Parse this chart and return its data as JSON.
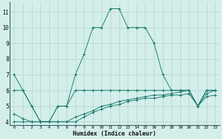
{
  "xlabel": "Humidex (Indice chaleur)",
  "bg_color": "#d4eeea",
  "line_color": "#1a7a6e",
  "grid_color": "#aed4ce",
  "xlim": [
    -0.5,
    23.5
  ],
  "ylim": [
    3.8,
    11.6
  ],
  "xticks": [
    0,
    1,
    2,
    3,
    4,
    5,
    6,
    7,
    8,
    9,
    10,
    11,
    12,
    13,
    14,
    15,
    16,
    17,
    18,
    19,
    20,
    21,
    22,
    23
  ],
  "yticks": [
    4,
    5,
    6,
    7,
    8,
    9,
    10,
    11
  ],
  "series": [
    {
      "x": [
        0,
        1,
        2,
        3,
        4,
        5,
        6,
        7,
        8,
        9,
        10,
        11,
        12,
        13,
        14,
        15,
        16,
        17,
        18,
        19,
        20,
        21,
        22,
        23
      ],
      "y": [
        7,
        6,
        5,
        4,
        4,
        5,
        5,
        7,
        8.3,
        10,
        10,
        11.2,
        11.2,
        10,
        10,
        10,
        9,
        7,
        6,
        6,
        6,
        5,
        6,
        6
      ]
    },
    {
      "x": [
        0,
        1,
        2,
        3,
        4,
        5,
        6,
        7,
        8,
        9,
        10,
        11,
        12,
        13,
        14,
        15,
        16,
        17,
        18,
        19,
        20,
        21,
        22,
        23
      ],
      "y": [
        6,
        6,
        5,
        4,
        4,
        5,
        5,
        6,
        6,
        6,
        6,
        6,
        6,
        6,
        6,
        6,
        6,
        6,
        6,
        6,
        6,
        5,
        6,
        6
      ]
    },
    {
      "x": [
        0,
        1,
        2,
        3,
        4,
        5,
        6,
        7,
        8,
        9,
        10,
        11,
        12,
        13,
        14,
        15,
        16,
        17,
        18,
        19,
        20,
        21,
        22,
        23
      ],
      "y": [
        4.5,
        4.2,
        4,
        4,
        4,
        4,
        4,
        4.3,
        4.5,
        4.7,
        5,
        5.1,
        5.3,
        5.4,
        5.5,
        5.6,
        5.7,
        5.7,
        5.8,
        5.9,
        6,
        5,
        5.8,
        6
      ]
    },
    {
      "x": [
        0,
        1,
        2,
        3,
        4,
        5,
        6,
        7,
        8,
        9,
        10,
        11,
        12,
        13,
        14,
        15,
        16,
        17,
        18,
        19,
        20,
        21,
        22,
        23
      ],
      "y": [
        4,
        4,
        4,
        4,
        4,
        4,
        4,
        4,
        4.3,
        4.6,
        4.8,
        5,
        5.1,
        5.3,
        5.4,
        5.5,
        5.5,
        5.6,
        5.7,
        5.7,
        5.8,
        5,
        5.6,
        5.7
      ]
    }
  ]
}
